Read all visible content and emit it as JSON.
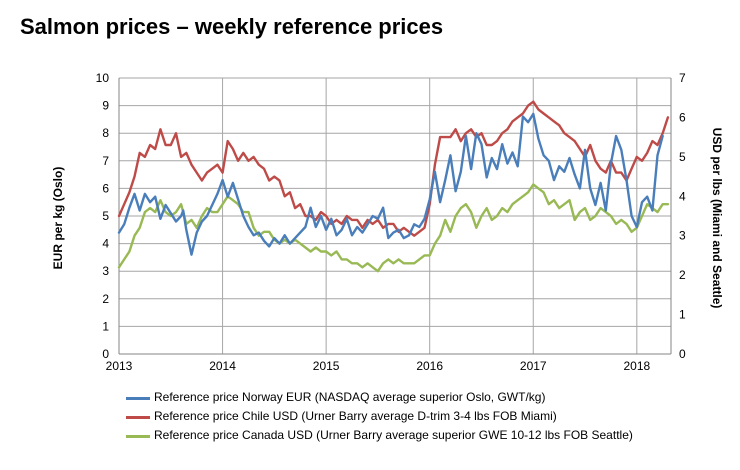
{
  "title": "Salmon prices – weekly reference prices",
  "chart_data": {
    "type": "line",
    "ylabel_left": "EUR per kg (Oslo)",
    "ylabel_right": "USD per lbs (Miami and Seattle)",
    "ylim_left": [
      0,
      10
    ],
    "ylim_right": [
      0,
      7
    ],
    "yticks_left": [
      "0",
      "1",
      "2",
      "3",
      "4",
      "5",
      "6",
      "7",
      "8",
      "9",
      "10"
    ],
    "yticks_right": [
      "0",
      "1",
      "2",
      "3",
      "4",
      "5",
      "6",
      "7"
    ],
    "xlim": [
      2013,
      2018.33
    ],
    "xticks": [
      "2013",
      "2014",
      "2015",
      "2016",
      "2017",
      "2018"
    ],
    "grid": true,
    "legend_position": "bottom",
    "series": [
      {
        "name": "Reference price Norway EUR (NASDAQ average superior Oslo, GWT/kg)",
        "axis": "left",
        "color": "#4a7ebb",
        "x": [
          2013.0,
          2013.05,
          2013.1,
          2013.15,
          2013.2,
          2013.25,
          2013.3,
          2013.35,
          2013.4,
          2013.45,
          2013.5,
          2013.55,
          2013.6,
          2013.62,
          2013.65,
          2013.7,
          2013.75,
          2013.8,
          2013.85,
          2013.9,
          2013.95,
          2014.0,
          2014.05,
          2014.1,
          2014.15,
          2014.2,
          2014.25,
          2014.3,
          2014.35,
          2014.4,
          2014.45,
          2014.5,
          2014.55,
          2014.6,
          2014.65,
          2014.7,
          2014.75,
          2014.8,
          2014.85,
          2014.9,
          2014.95,
          2015.0,
          2015.05,
          2015.1,
          2015.15,
          2015.2,
          2015.25,
          2015.3,
          2015.35,
          2015.4,
          2015.45,
          2015.5,
          2015.55,
          2015.6,
          2015.65,
          2015.7,
          2015.75,
          2015.8,
          2015.85,
          2015.9,
          2015.95,
          2016.0,
          2016.05,
          2016.1,
          2016.15,
          2016.2,
          2016.25,
          2016.3,
          2016.35,
          2016.4,
          2016.45,
          2016.5,
          2016.55,
          2016.6,
          2016.65,
          2016.7,
          2016.75,
          2016.8,
          2016.85,
          2016.9,
          2016.95,
          2017.0,
          2017.05,
          2017.1,
          2017.15,
          2017.2,
          2017.25,
          2017.3,
          2017.35,
          2017.4,
          2017.45,
          2017.5,
          2017.55,
          2017.6,
          2017.65,
          2017.7,
          2017.75,
          2017.8,
          2017.85,
          2017.9,
          2017.95,
          2018.0,
          2018.05,
          2018.1,
          2018.15,
          2018.2,
          2018.25
        ],
        "values": [
          4.4,
          4.7,
          5.3,
          5.8,
          5.2,
          5.8,
          5.5,
          5.7,
          4.9,
          5.4,
          5.1,
          4.8,
          5.0,
          5.2,
          4.5,
          3.6,
          4.4,
          4.8,
          5.0,
          5.4,
          5.8,
          6.3,
          5.7,
          6.2,
          5.6,
          5.0,
          4.6,
          4.3,
          4.4,
          4.1,
          3.9,
          4.2,
          4.0,
          4.3,
          4.0,
          4.2,
          4.4,
          4.6,
          5.3,
          4.6,
          5.0,
          4.5,
          4.9,
          4.3,
          4.5,
          4.9,
          4.3,
          4.6,
          4.4,
          4.7,
          5.0,
          4.9,
          5.3,
          4.2,
          4.4,
          4.5,
          4.2,
          4.3,
          4.7,
          4.6,
          4.9,
          5.6,
          6.6,
          5.5,
          6.3,
          7.2,
          5.9,
          6.6,
          7.9,
          6.7,
          8.0,
          7.6,
          6.4,
          7.1,
          6.7,
          7.6,
          6.9,
          7.3,
          6.8,
          8.6,
          8.4,
          8.7,
          7.8,
          7.2,
          7.0,
          6.3,
          6.8,
          6.6,
          7.1,
          6.5,
          6.0,
          7.4,
          6.0,
          5.4,
          6.2,
          5.2,
          6.9,
          7.9,
          7.4,
          6.3,
          5.0,
          4.6,
          5.5,
          5.7,
          5.2,
          7.2,
          7.9
        ]
      },
      {
        "name": "Reference price Chile USD (Urner Barry average D-trim 3-4 lbs FOB Miami)",
        "axis": "right",
        "color": "#be4b48",
        "x": [
          2013.0,
          2013.05,
          2013.1,
          2013.15,
          2013.2,
          2013.25,
          2013.3,
          2013.35,
          2013.4,
          2013.45,
          2013.5,
          2013.55,
          2013.6,
          2013.65,
          2013.7,
          2013.75,
          2013.8,
          2013.85,
          2013.9,
          2013.95,
          2014.0,
          2014.05,
          2014.1,
          2014.15,
          2014.2,
          2014.25,
          2014.3,
          2014.35,
          2014.4,
          2014.45,
          2014.5,
          2014.55,
          2014.6,
          2014.65,
          2014.7,
          2014.75,
          2014.8,
          2014.85,
          2014.9,
          2014.95,
          2015.0,
          2015.05,
          2015.1,
          2015.15,
          2015.2,
          2015.25,
          2015.3,
          2015.35,
          2015.4,
          2015.45,
          2015.5,
          2015.55,
          2015.6,
          2015.65,
          2015.7,
          2015.75,
          2015.8,
          2015.85,
          2015.9,
          2015.95,
          2016.0,
          2016.05,
          2016.1,
          2016.15,
          2016.2,
          2016.25,
          2016.3,
          2016.35,
          2016.4,
          2016.45,
          2016.5,
          2016.55,
          2016.6,
          2016.65,
          2016.7,
          2016.75,
          2016.8,
          2016.85,
          2016.9,
          2016.95,
          2017.0,
          2017.05,
          2017.1,
          2017.15,
          2017.2,
          2017.25,
          2017.3,
          2017.35,
          2017.4,
          2017.45,
          2017.5,
          2017.55,
          2017.6,
          2017.65,
          2017.7,
          2017.75,
          2017.8,
          2017.85,
          2017.9,
          2017.95,
          2018.0,
          2018.05,
          2018.1,
          2018.15,
          2018.2,
          2018.25,
          2018.3
        ],
        "values": [
          3.5,
          3.8,
          4.1,
          4.5,
          5.1,
          5.0,
          5.3,
          5.2,
          5.7,
          5.3,
          5.3,
          5.6,
          5.0,
          5.1,
          4.8,
          4.6,
          4.4,
          4.6,
          4.7,
          4.8,
          4.6,
          5.4,
          5.2,
          4.9,
          5.1,
          4.9,
          5.0,
          4.8,
          4.7,
          4.4,
          4.5,
          4.4,
          4.0,
          4.1,
          3.7,
          3.8,
          3.5,
          3.5,
          3.4,
          3.6,
          3.5,
          3.3,
          3.4,
          3.3,
          3.5,
          3.4,
          3.4,
          3.2,
          3.4,
          3.3,
          3.4,
          3.2,
          3.3,
          3.3,
          3.1,
          3.2,
          3.1,
          3.0,
          3.1,
          3.2,
          3.8,
          4.8,
          5.5,
          5.5,
          5.5,
          5.7,
          5.4,
          5.6,
          5.7,
          5.5,
          5.6,
          5.3,
          5.3,
          5.4,
          5.6,
          5.7,
          5.9,
          6.0,
          6.1,
          6.3,
          6.4,
          6.2,
          6.1,
          6.0,
          5.9,
          5.8,
          5.6,
          5.5,
          5.4,
          5.2,
          5.0,
          5.3,
          4.9,
          4.7,
          4.6,
          4.9,
          4.6,
          4.6,
          4.4,
          4.7,
          5.0,
          4.9,
          5.1,
          5.4,
          5.3,
          5.6,
          6.0
        ]
      },
      {
        "name": "Reference price Canada USD (Urner Barry average superior GWE 10-12 lbs FOB Seattle)",
        "axis": "right",
        "color": "#98b954",
        "x": [
          2013.0,
          2013.05,
          2013.1,
          2013.15,
          2013.2,
          2013.25,
          2013.3,
          2013.35,
          2013.4,
          2013.45,
          2013.5,
          2013.55,
          2013.6,
          2013.65,
          2013.7,
          2013.75,
          2013.8,
          2013.85,
          2013.9,
          2013.95,
          2014.0,
          2014.05,
          2014.1,
          2014.15,
          2014.2,
          2014.25,
          2014.3,
          2014.35,
          2014.4,
          2014.45,
          2014.5,
          2014.55,
          2014.6,
          2014.65,
          2014.7,
          2014.75,
          2014.8,
          2014.85,
          2014.9,
          2014.95,
          2015.0,
          2015.05,
          2015.1,
          2015.15,
          2015.2,
          2015.25,
          2015.3,
          2015.35,
          2015.4,
          2015.45,
          2015.5,
          2015.55,
          2015.6,
          2015.65,
          2015.7,
          2015.75,
          2015.8,
          2015.85,
          2015.9,
          2015.95,
          2016.0,
          2016.05,
          2016.1,
          2016.15,
          2016.2,
          2016.25,
          2016.3,
          2016.35,
          2016.4,
          2016.45,
          2016.5,
          2016.55,
          2016.6,
          2016.65,
          2016.7,
          2016.75,
          2016.8,
          2016.85,
          2016.9,
          2016.95,
          2017.0,
          2017.05,
          2017.1,
          2017.15,
          2017.2,
          2017.25,
          2017.3,
          2017.35,
          2017.4,
          2017.45,
          2017.5,
          2017.55,
          2017.6,
          2017.65,
          2017.7,
          2017.75,
          2017.8,
          2017.85,
          2017.9,
          2017.95,
          2018.0,
          2018.05,
          2018.1,
          2018.15,
          2018.2,
          2018.25,
          2018.3
        ],
        "values": [
          2.2,
          2.4,
          2.6,
          3.0,
          3.2,
          3.6,
          3.7,
          3.6,
          3.9,
          3.6,
          3.5,
          3.6,
          3.8,
          3.3,
          3.4,
          3.2,
          3.5,
          3.7,
          3.6,
          3.6,
          3.8,
          4.0,
          3.9,
          3.8,
          3.6,
          3.6,
          3.2,
          3.0,
          3.1,
          3.1,
          2.9,
          2.8,
          2.9,
          2.8,
          2.9,
          2.8,
          2.7,
          2.6,
          2.7,
          2.6,
          2.6,
          2.5,
          2.6,
          2.4,
          2.4,
          2.3,
          2.3,
          2.2,
          2.3,
          2.2,
          2.1,
          2.3,
          2.4,
          2.3,
          2.4,
          2.3,
          2.3,
          2.3,
          2.4,
          2.5,
          2.5,
          2.8,
          3.0,
          3.4,
          3.1,
          3.5,
          3.7,
          3.8,
          3.6,
          3.2,
          3.5,
          3.7,
          3.4,
          3.5,
          3.7,
          3.6,
          3.8,
          3.9,
          4.0,
          4.1,
          4.3,
          4.2,
          4.1,
          3.8,
          3.9,
          3.7,
          3.8,
          3.9,
          3.4,
          3.6,
          3.7,
          3.4,
          3.5,
          3.7,
          3.6,
          3.5,
          3.3,
          3.4,
          3.3,
          3.1,
          3.2,
          3.5,
          3.8,
          3.7,
          3.6,
          3.8,
          3.8
        ]
      }
    ]
  }
}
